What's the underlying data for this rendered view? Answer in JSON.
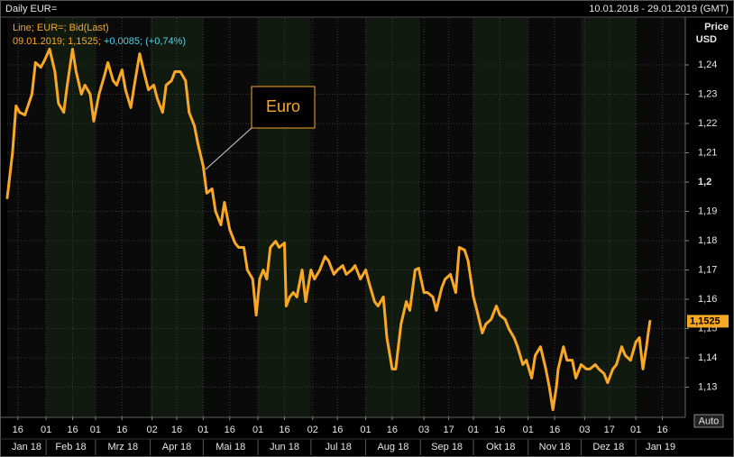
{
  "chart_data": {
    "type": "line",
    "title": "Daily EUR=",
    "date_range": "10.01.2018 - 29.01.2019 (GMT)",
    "info_line": "Line; EUR=; Bid(Last)",
    "last_quote": [
      "09.01.2019; 1,1525;",
      "+0,0085; (+0,74%)"
    ],
    "y_axis_label": [
      "Price",
      "USD"
    ],
    "annotation": "Euro",
    "auto_button": "Auto",
    "last_label": "1,1525",
    "color": "#f9a825",
    "grid": true,
    "xlim": [
      "2018-01-10",
      "2019-01-29"
    ],
    "ylim": [
      1.12,
      1.256
    ],
    "yticks": [
      {
        "value": 1.13,
        "label": "1,13"
      },
      {
        "value": 1.14,
        "label": "1,14"
      },
      {
        "value": 1.15,
        "label": "1,15"
      },
      {
        "value": 1.16,
        "label": "1,16"
      },
      {
        "value": 1.17,
        "label": "1,17"
      },
      {
        "value": 1.18,
        "label": "1,18"
      },
      {
        "value": 1.19,
        "label": "1,19"
      },
      {
        "value": 1.2,
        "label": "1,2"
      },
      {
        "value": 1.21,
        "label": "1,21"
      },
      {
        "value": 1.22,
        "label": "1,22"
      },
      {
        "value": 1.23,
        "label": "1,23"
      },
      {
        "value": 1.24,
        "label": "1,24"
      }
    ],
    "xticks": [
      {
        "value": "2018-01-16",
        "label": "16"
      },
      {
        "value": "2018-02-01",
        "label": "01"
      },
      {
        "value": "2018-02-16",
        "label": "16"
      },
      {
        "value": "2018-03-01",
        "label": "01"
      },
      {
        "value": "2018-03-16",
        "label": "16"
      },
      {
        "value": "2018-04-02",
        "label": "02"
      },
      {
        "value": "2018-04-16",
        "label": "16"
      },
      {
        "value": "2018-05-01",
        "label": "01"
      },
      {
        "value": "2018-05-16",
        "label": "16"
      },
      {
        "value": "2018-06-01",
        "label": "01"
      },
      {
        "value": "2018-06-16",
        "label": "16"
      },
      {
        "value": "2018-07-02",
        "label": "02"
      },
      {
        "value": "2018-07-16",
        "label": "16"
      },
      {
        "value": "2018-08-01",
        "label": "01"
      },
      {
        "value": "2018-08-16",
        "label": "16"
      },
      {
        "value": "2018-09-03",
        "label": "03"
      },
      {
        "value": "2018-09-17",
        "label": "17"
      },
      {
        "value": "2018-10-01",
        "label": "01"
      },
      {
        "value": "2018-10-16",
        "label": "16"
      },
      {
        "value": "2018-11-01",
        "label": "01"
      },
      {
        "value": "2018-11-16",
        "label": "16"
      },
      {
        "value": "2018-12-03",
        "label": "03"
      },
      {
        "value": "2018-12-17",
        "label": "17"
      },
      {
        "value": "2019-01-01",
        "label": "01"
      },
      {
        "value": "2019-01-16",
        "label": "16"
      }
    ],
    "xmonths": [
      {
        "value": "2018-01",
        "label": "Jan 18"
      },
      {
        "value": "2018-02",
        "label": "Feb 18"
      },
      {
        "value": "2018-03",
        "label": "Mrz 18"
      },
      {
        "value": "2018-04",
        "label": "Apr 18"
      },
      {
        "value": "2018-05",
        "label": "Mai 18"
      },
      {
        "value": "2018-06",
        "label": "Jun 18"
      },
      {
        "value": "2018-07",
        "label": "Jul 18"
      },
      {
        "value": "2018-08",
        "label": "Aug 18"
      },
      {
        "value": "2018-09",
        "label": "Sep 18"
      },
      {
        "value": "2018-10",
        "label": "Okt 18"
      },
      {
        "value": "2018-11",
        "label": "Nov 18"
      },
      {
        "value": "2018-12",
        "label": "Dez 18"
      },
      {
        "value": "2019-01",
        "label": "Jan 19"
      }
    ],
    "x": [
      "2018-01-10",
      "2018-01-13",
      "2018-01-15",
      "2018-01-17",
      "2018-01-20",
      "2018-01-24",
      "2018-01-26",
      "2018-01-29",
      "2018-01-31",
      "2018-02-03",
      "2018-02-06",
      "2018-02-08",
      "2018-02-11",
      "2018-02-13",
      "2018-02-16",
      "2018-02-18",
      "2018-02-21",
      "2018-02-23",
      "2018-02-26",
      "2018-02-28",
      "2018-03-03",
      "2018-03-06",
      "2018-03-08",
      "2018-03-11",
      "2018-03-13",
      "2018-03-16",
      "2018-03-18",
      "2018-03-21",
      "2018-03-23",
      "2018-03-26",
      "2018-03-29",
      "2018-03-31",
      "2018-04-03",
      "2018-04-05",
      "2018-04-08",
      "2018-04-10",
      "2018-04-13",
      "2018-04-15",
      "2018-04-18",
      "2018-04-21",
      "2018-04-23",
      "2018-04-26",
      "2018-04-28",
      "2018-05-01",
      "2018-05-03",
      "2018-05-06",
      "2018-05-08",
      "2018-05-11",
      "2018-05-13",
      "2018-05-16",
      "2018-05-19",
      "2018-05-21",
      "2018-05-24",
      "2018-05-26",
      "2018-05-29",
      "2018-05-31",
      "2018-06-02",
      "2018-06-04",
      "2018-06-06",
      "2018-06-08",
      "2018-06-11",
      "2018-06-13",
      "2018-06-16",
      "2018-06-17",
      "2018-06-19",
      "2018-06-21",
      "2018-06-23",
      "2018-06-26",
      "2018-06-28",
      "2018-07-01",
      "2018-07-03",
      "2018-07-06",
      "2018-07-09",
      "2018-07-11",
      "2018-07-14",
      "2018-07-16",
      "2018-07-19",
      "2018-07-21",
      "2018-07-24",
      "2018-07-26",
      "2018-07-29",
      "2018-08-01",
      "2018-08-03",
      "2018-08-06",
      "2018-08-08",
      "2018-08-11",
      "2018-08-13",
      "2018-08-16",
      "2018-08-18",
      "2018-08-21",
      "2018-08-24",
      "2018-08-26",
      "2018-08-29",
      "2018-08-31",
      "2018-09-03",
      "2018-09-05",
      "2018-09-08",
      "2018-09-10",
      "2018-09-13",
      "2018-09-15",
      "2018-09-18",
      "2018-09-21",
      "2018-09-23",
      "2018-09-26",
      "2018-09-28",
      "2018-10-01",
      "2018-10-03",
      "2018-10-06",
      "2018-10-08",
      "2018-10-11",
      "2018-10-14",
      "2018-10-16",
      "2018-10-19",
      "2018-10-21",
      "2018-10-24",
      "2018-10-26",
      "2018-10-29",
      "2018-10-31",
      "2018-11-03",
      "2018-11-05",
      "2018-11-08",
      "2018-11-11",
      "2018-11-13",
      "2018-11-15",
      "2018-11-17",
      "2018-11-18",
      "2018-11-21",
      "2018-11-23",
      "2018-11-26",
      "2018-11-28",
      "2018-12-01",
      "2018-12-04",
      "2018-12-06",
      "2018-12-09",
      "2018-12-11",
      "2018-12-14",
      "2018-12-16",
      "2018-12-19",
      "2018-12-21",
      "2018-12-24",
      "2018-12-26",
      "2018-12-29",
      "2019-01-01",
      "2019-01-03",
      "2019-01-05",
      "2019-01-07",
      "2019-01-08",
      "2019-01-09"
    ],
    "values": [
      1.1946,
      1.21,
      1.226,
      1.2238,
      1.2229,
      1.23,
      1.2408,
      1.2392,
      1.2414,
      1.2454,
      1.2377,
      1.2269,
      1.2238,
      1.2331,
      1.2454,
      1.2377,
      1.23,
      1.2331,
      1.23,
      1.2208,
      1.23,
      1.2362,
      1.2408,
      1.2346,
      1.2331,
      1.2383,
      1.2315,
      1.2254,
      1.2331,
      1.2438,
      1.2362,
      1.2315,
      1.2331,
      1.2285,
      1.2238,
      1.2331,
      1.2346,
      1.2377,
      1.2377,
      1.2346,
      1.2238,
      1.2192,
      1.2131,
      1.2054,
      1.1962,
      1.1977,
      1.19,
      1.1854,
      1.1931,
      1.1838,
      1.1792,
      1.1777,
      1.1777,
      1.17,
      1.1669,
      1.1546,
      1.1669,
      1.17,
      1.1669,
      1.1777,
      1.1798,
      1.1777,
      1.1792,
      1.1577,
      1.1608,
      1.1623,
      1.1608,
      1.17,
      1.1592,
      1.17,
      1.1669,
      1.17,
      1.1746,
      1.1731,
      1.1685,
      1.17,
      1.1715,
      1.1685,
      1.17,
      1.1715,
      1.1669,
      1.17,
      1.1654,
      1.1592,
      1.1577,
      1.1608,
      1.1469,
      1.1362,
      1.1362,
      1.1515,
      1.1592,
      1.1562,
      1.17,
      1.1706,
      1.1623,
      1.1623,
      1.1608,
      1.1562,
      1.1638,
      1.1669,
      1.1685,
      1.1623,
      1.1777,
      1.1768,
      1.1731,
      1.1608,
      1.1562,
      1.1485,
      1.1515,
      1.1531,
      1.1577,
      1.1546,
      1.1531,
      1.15,
      1.1469,
      1.1438,
      1.1377,
      1.1392,
      1.1331,
      1.1408,
      1.1438,
      1.1362,
      1.13,
      1.1223,
      1.13,
      1.1362,
      1.1438,
      1.1392,
      1.1392,
      1.1331,
      1.1377,
      1.1362,
      1.1362,
      1.1377,
      1.1362,
      1.1346,
      1.1315,
      1.1362,
      1.1377,
      1.1438,
      1.1408,
      1.1392,
      1.1454,
      1.1469,
      1.1362,
      1.1438,
      1.1485,
      1.1525
    ]
  }
}
